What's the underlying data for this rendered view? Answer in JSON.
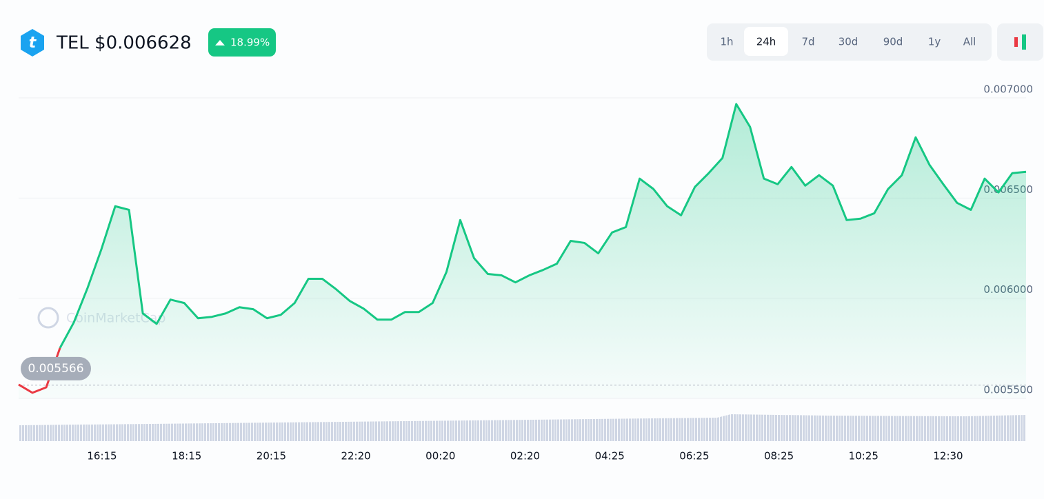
{
  "header": {
    "ticker": "TEL $0.006628",
    "change": "18.99%"
  },
  "range_buttons": [
    "1h",
    "24h",
    "7d",
    "30d",
    "90d",
    "1y",
    "All"
  ],
  "selected_range": 1,
  "chart_data": {
    "type": "line",
    "watermark": "CoinMarketCap",
    "color": "#16c784",
    "down_color": "#ea3943",
    "values": [
      0.005569,
      0.005528,
      0.005555,
      0.005752,
      0.005879,
      0.006052,
      0.006245,
      0.006459,
      0.006441,
      0.005924,
      0.005872,
      0.005993,
      0.005976,
      0.0059,
      0.005907,
      0.005924,
      0.005955,
      0.005945,
      0.0059,
      0.005917,
      0.005976,
      0.006097,
      0.006097,
      0.006045,
      0.005986,
      0.005948,
      0.005893,
      0.005893,
      0.005931,
      0.005931,
      0.005976,
      0.006131,
      0.00639,
      0.0062,
      0.006121,
      0.006114,
      0.006079,
      0.006114,
      0.006141,
      0.006172,
      0.006286,
      0.006276,
      0.006224,
      0.006328,
      0.006355,
      0.006597,
      0.006545,
      0.006459,
      0.006414,
      0.006555,
      0.006624,
      0.0067,
      0.006969,
      0.006855,
      0.006597,
      0.006569,
      0.006655,
      0.006562,
      0.006614,
      0.006562,
      0.00639,
      0.006397,
      0.006424,
      0.006545,
      0.006614,
      0.006803,
      0.006666,
      0.006569,
      0.006476,
      0.006441,
      0.006597,
      0.006528,
      0.006624,
      0.006631
    ],
    "reference": 0.005566,
    "x_labels": [
      "16:15",
      "18:15",
      "20:15",
      "22:20",
      "00:20",
      "02:20",
      "04:25",
      "06:25",
      "08:25",
      "10:25",
      "12:30"
    ],
    "ylim": [
      0.0055,
      0.007
    ],
    "yticks": [
      {
        "value": 0.0055,
        "label": "0.005500"
      },
      {
        "value": 0.006,
        "label": "0.006000"
      },
      {
        "value": 0.0065,
        "label": "0.006500"
      },
      {
        "value": 0.007,
        "label": "0.007000"
      }
    ],
    "grid": true
  }
}
